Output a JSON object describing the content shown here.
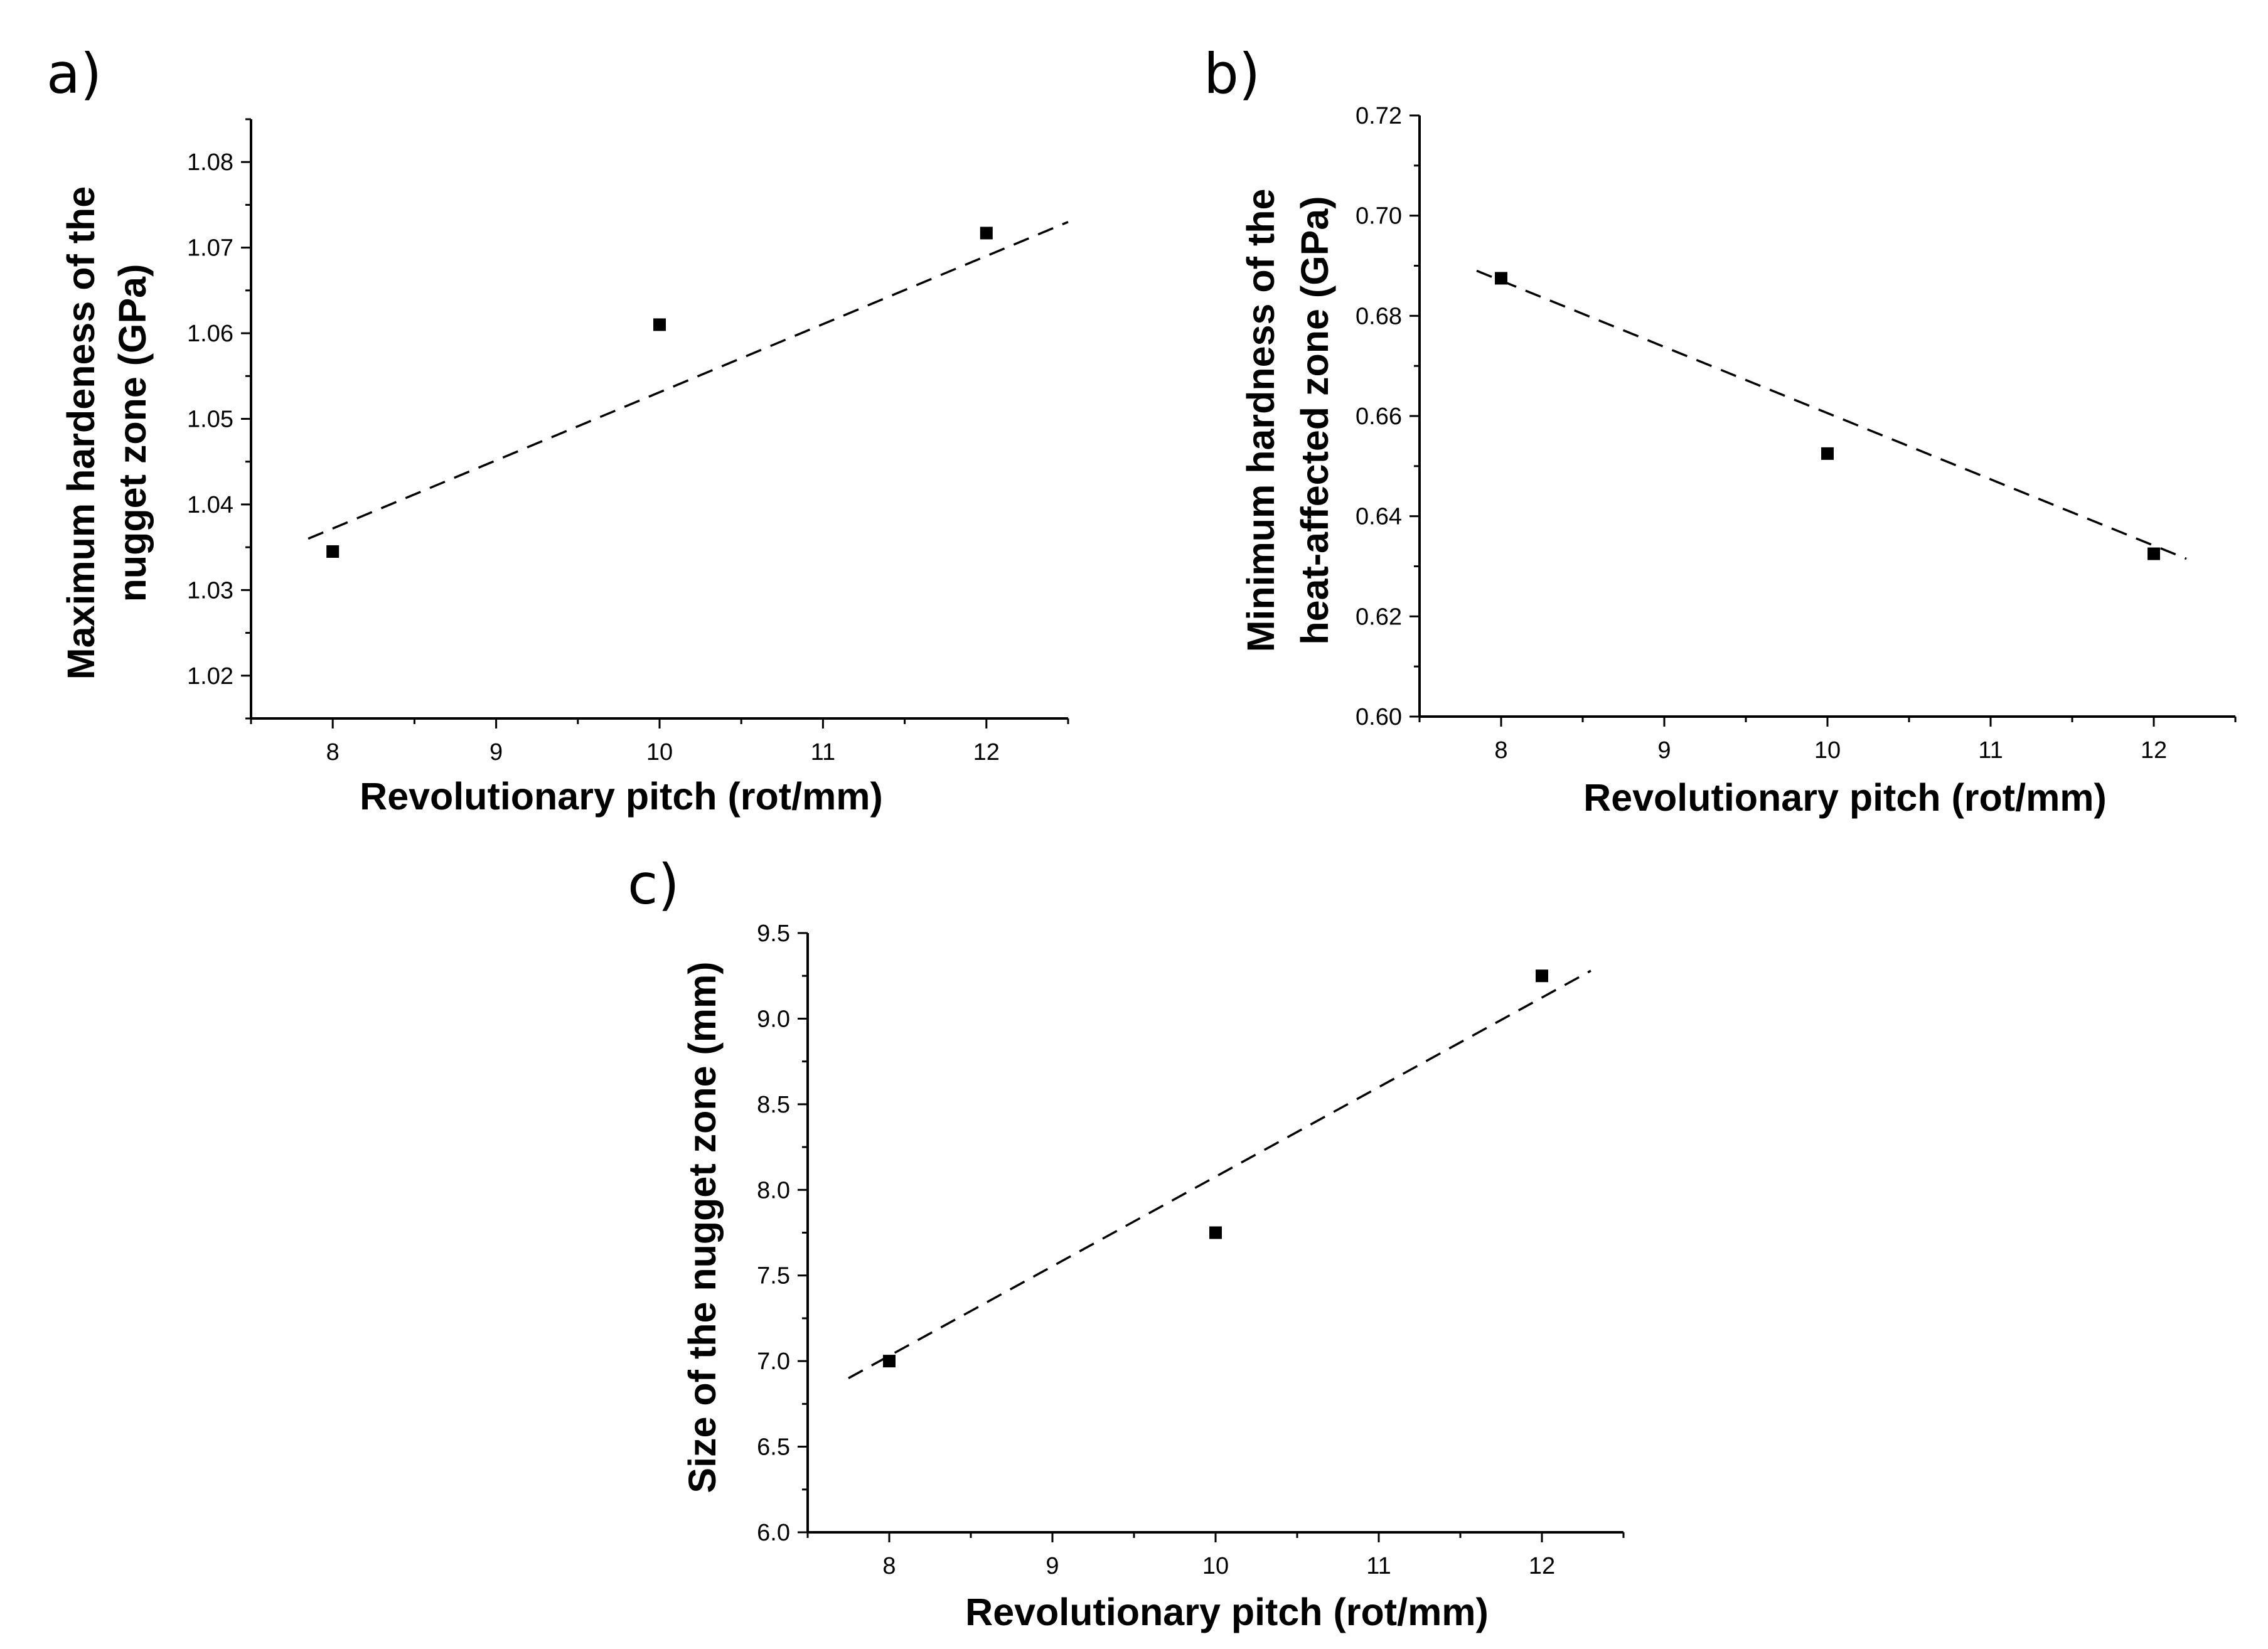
{
  "chart_data": [
    {
      "id": "a",
      "type": "scatter",
      "panel_label": "a)",
      "xlabel": "Revolutionary pitch (rot/mm)",
      "ylabel": [
        "Maximum hardeness of the",
        "nugget zone (GPa)"
      ],
      "xlim": [
        7.5,
        12.5
      ],
      "ylim": [
        1.015,
        1.085
      ],
      "xticks": [
        8,
        9,
        10,
        11,
        12
      ],
      "yticks": [
        1.02,
        1.03,
        1.04,
        1.05,
        1.06,
        1.07,
        1.08
      ],
      "ytick_decimals": 2,
      "xtick_labels": [
        "8",
        "9",
        "10",
        "11",
        "12"
      ],
      "ytick_labels": [
        "1.02",
        "1.03",
        "1.04",
        "1.05",
        "1.06",
        "1.07",
        "1.08"
      ],
      "grid": false,
      "points": [
        {
          "x": 8,
          "y": 1.0345
        },
        {
          "x": 10,
          "y": 1.061
        },
        {
          "x": 12,
          "y": 1.0717
        }
      ],
      "fit_line": {
        "x": [
          7.85,
          12.5
        ],
        "y": [
          1.036,
          1.073
        ]
      }
    },
    {
      "id": "b",
      "type": "scatter",
      "panel_label": "b)",
      "xlabel": "Revolutionary pitch (rot/mm)",
      "ylabel": [
        "Minimum hardness of the",
        "heat-affected zone (GPa)"
      ],
      "xlim": [
        7.5,
        12.5
      ],
      "ylim": [
        0.6,
        0.72
      ],
      "xticks": [
        8,
        9,
        10,
        11,
        12
      ],
      "yticks": [
        0.6,
        0.62,
        0.64,
        0.66,
        0.68,
        0.7,
        0.72
      ],
      "ytick_decimals": 2,
      "xtick_labels": [
        "8",
        "9",
        "10",
        "11",
        "12"
      ],
      "ytick_labels": [
        "0.60",
        "0.62",
        "0.64",
        "0.66",
        "0.68",
        "0.70",
        "0.72"
      ],
      "grid": false,
      "points": [
        {
          "x": 8,
          "y": 0.6875
        },
        {
          "x": 10,
          "y": 0.6525
        },
        {
          "x": 12,
          "y": 0.6325
        }
      ],
      "fit_line": {
        "x": [
          7.85,
          12.2
        ],
        "y": [
          0.689,
          0.6315
        ]
      }
    },
    {
      "id": "c",
      "type": "scatter",
      "panel_label": "c)",
      "xlabel": "Revolutionary pitch (rot/mm)",
      "ylabel": [
        "Size of the nugget zone (mm)"
      ],
      "xlim": [
        7.5,
        12.5
      ],
      "ylim": [
        6.0,
        9.5
      ],
      "xticks": [
        8,
        9,
        10,
        11,
        12
      ],
      "yticks": [
        6.0,
        6.5,
        7.0,
        7.5,
        8.0,
        8.5,
        9.0,
        9.5
      ],
      "ytick_decimals": 1,
      "xtick_labels": [
        "8",
        "9",
        "10",
        "11",
        "12"
      ],
      "ytick_labels": [
        "6.0",
        "6.5",
        "7.0",
        "7.5",
        "8.0",
        "8.5",
        "9.0",
        "9.5"
      ],
      "grid": false,
      "points": [
        {
          "x": 8,
          "y": 7.0
        },
        {
          "x": 10,
          "y": 7.75
        },
        {
          "x": 12,
          "y": 9.25
        }
      ],
      "fit_line": {
        "x": [
          7.75,
          12.3
        ],
        "y": [
          6.9,
          9.28
        ]
      }
    }
  ]
}
